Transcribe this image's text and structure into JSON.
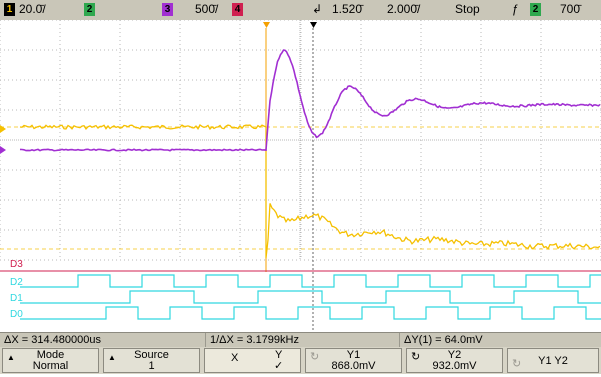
{
  "top_bar": {
    "ch1_num": "1",
    "ch1_scale": "20.0̄/",
    "ch2_num": "2",
    "ch3_num": "3",
    "ch3_scale": "500̄/",
    "ch4_num": "4",
    "time_pos": "1.520̄",
    "time_scale": "2.000̄/",
    "run_state": "Stop",
    "trig_channel": "2",
    "trig_level": "700̄"
  },
  "channel_labels": {
    "d3": "D3",
    "d2": "D2",
    "d1": "D1",
    "d0": "D0"
  },
  "readout": {
    "delta_x": "ΔX = 314.480000us",
    "inv_delta_x": "1/ΔX = 3.1799kHz",
    "delta_y": "ΔY(1) = 64.0mV"
  },
  "softkeys": {
    "mode_label": "Mode",
    "mode_value": "Normal",
    "source_label": "Source",
    "source_value": "1",
    "x_label": "X",
    "y_label": "Y",
    "y_check": "✓",
    "y1_label": "Y1",
    "y1_value": "868.0mV",
    "y2_label": "Y2",
    "y2_value": "932.0mV",
    "y1y2_label": "Y1 Y2"
  },
  "colors": {
    "ch1": "#f5c000",
    "ch2": "#2fa84f",
    "ch3": "#a12fd2",
    "ch4": "#d02050",
    "digital": "#30d8e0",
    "grid": "#b8b8b8"
  }
}
